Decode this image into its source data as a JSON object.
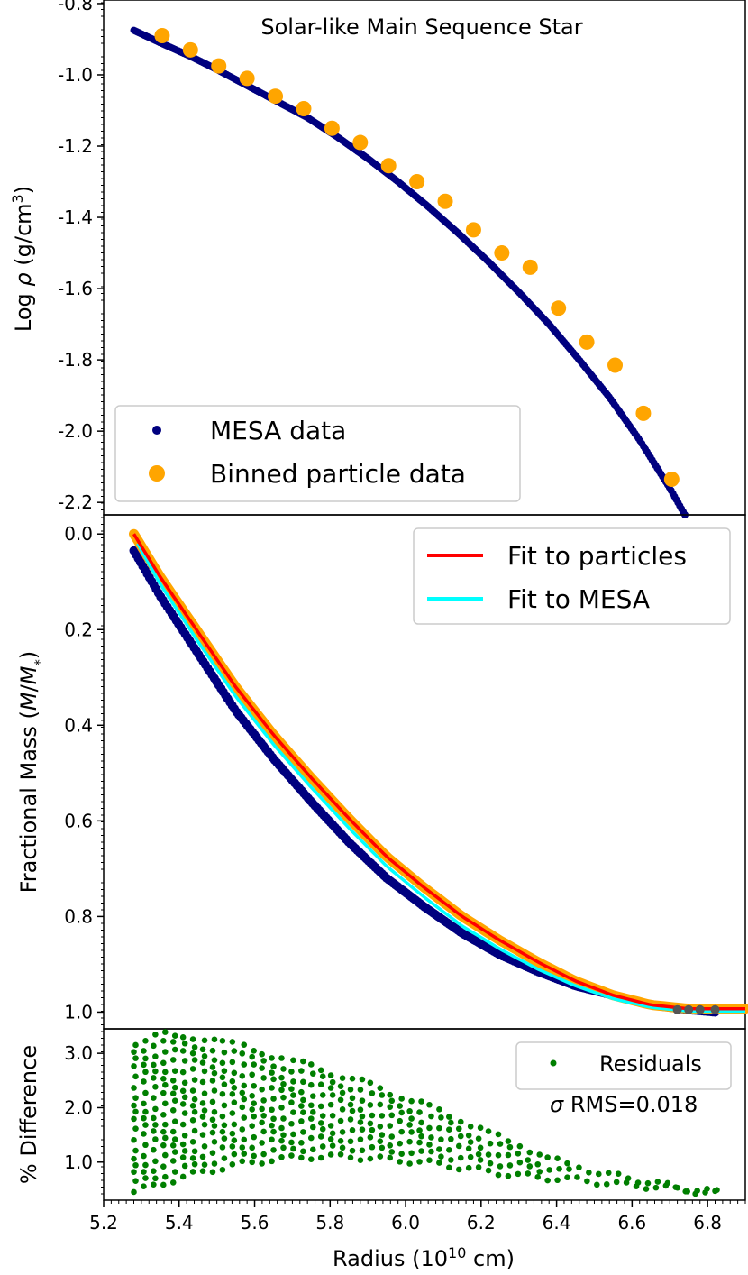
{
  "chart_data": [
    {
      "panel": "top",
      "type": "scatter",
      "title": "Solar-like Main Sequence Star",
      "ylabel_parts": [
        "Log ",
        "ρ",
        " (g/cm",
        "3",
        ")"
      ],
      "xlim": [
        5.2,
        6.9
      ],
      "ylim": [
        -2.235,
        -0.79
      ],
      "yticks": [
        -0.8,
        -1.0,
        -1.2,
        -1.4,
        -1.6,
        -1.8,
        -2.0,
        -2.2
      ],
      "ytick_labels": [
        "-0.8",
        "-1.0",
        "-1.2",
        "-1.4",
        "-1.6",
        "-1.8",
        "-2.0",
        "-2.2"
      ],
      "series": [
        {
          "name": "MESA data",
          "style": "curve-dots",
          "color": "#00007f",
          "x": [
            5.28,
            5.35,
            5.43,
            5.5,
            5.58,
            5.66,
            5.74,
            5.82,
            5.9,
            5.98,
            6.06,
            6.14,
            6.22,
            6.3,
            6.38,
            6.46,
            6.54,
            6.62,
            6.7,
            6.74
          ],
          "y": [
            -0.875,
            -0.91,
            -0.948,
            -0.985,
            -1.03,
            -1.075,
            -1.12,
            -1.175,
            -1.235,
            -1.3,
            -1.37,
            -1.445,
            -1.525,
            -1.61,
            -1.7,
            -1.8,
            -1.905,
            -2.025,
            -2.16,
            -2.235
          ]
        },
        {
          "name": "Binned particle data",
          "style": "points",
          "color": "#ffa500",
          "x": [
            5.355,
            5.43,
            5.505,
            5.58,
            5.655,
            5.73,
            5.805,
            5.88,
            5.955,
            6.03,
            6.105,
            6.18,
            6.255,
            6.33,
            6.405,
            6.48,
            6.555,
            6.63,
            6.705
          ],
          "y": [
            -0.89,
            -0.93,
            -0.975,
            -1.01,
            -1.06,
            -1.095,
            -1.15,
            -1.19,
            -1.255,
            -1.3,
            -1.355,
            -1.435,
            -1.5,
            -1.54,
            -1.655,
            -1.75,
            -1.815,
            -1.95,
            -2.135
          ]
        }
      ],
      "legend": {
        "placement": "lower-left",
        "entries": [
          "MESA data",
          "Binned particle data"
        ]
      }
    },
    {
      "panel": "middle",
      "type": "line",
      "ylabel_parts": [
        "Fractional Mass (",
        "M",
        "/",
        "M",
        "*",
        ")"
      ],
      "xlim": [
        5.2,
        6.9
      ],
      "ylim": [
        1.035,
        -0.04
      ],
      "yticks": [
        0.0,
        0.2,
        0.4,
        0.6,
        0.8,
        1.0
      ],
      "ytick_labels": [
        "0.0",
        "0.2",
        "0.4",
        "0.6",
        "0.8",
        "1.0"
      ],
      "series": [
        {
          "name": "MESA points",
          "style": "dots",
          "color": "#00007f",
          "x": [
            5.28,
            5.35,
            5.45,
            5.55,
            5.65,
            5.75,
            5.85,
            5.95,
            6.05,
            6.15,
            6.25,
            6.35,
            6.45,
            6.55,
            6.65,
            6.75,
            6.82
          ],
          "y": [
            0.035,
            0.13,
            0.25,
            0.37,
            0.47,
            0.56,
            0.645,
            0.72,
            0.78,
            0.835,
            0.88,
            0.915,
            0.945,
            0.965,
            0.985,
            0.995,
            1.0
          ]
        },
        {
          "name": "Particle points",
          "style": "thick-line",
          "color": "#ffa500",
          "x": [
            5.28,
            5.35,
            5.45,
            5.55,
            5.65,
            5.75,
            5.85,
            5.95,
            6.05,
            6.15,
            6.25,
            6.35,
            6.45,
            6.55,
            6.65,
            6.75,
            6.9
          ],
          "y": [
            0.0,
            0.09,
            0.205,
            0.32,
            0.42,
            0.51,
            0.595,
            0.675,
            0.74,
            0.8,
            0.85,
            0.895,
            0.935,
            0.965,
            0.985,
            0.993,
            0.993
          ]
        },
        {
          "name": "Fit to particles",
          "style": "line",
          "color": "#ff0000",
          "x": [
            5.28,
            5.35,
            5.45,
            5.55,
            5.65,
            5.75,
            5.85,
            5.95,
            6.05,
            6.15,
            6.25,
            6.35,
            6.45,
            6.55,
            6.65,
            6.75,
            6.9
          ],
          "y": [
            0.0,
            0.09,
            0.205,
            0.32,
            0.42,
            0.51,
            0.595,
            0.675,
            0.74,
            0.8,
            0.85,
            0.895,
            0.935,
            0.965,
            0.985,
            0.993,
            0.993
          ]
        },
        {
          "name": "Fit to MESA",
          "style": "line",
          "color": "#00ffff",
          "x": [
            5.29,
            5.35,
            5.45,
            5.55,
            5.65,
            5.75,
            5.85,
            5.95,
            6.05,
            6.15,
            6.25,
            6.35,
            6.45,
            6.55,
            6.65,
            6.75,
            6.9
          ],
          "y": [
            0.02,
            0.105,
            0.225,
            0.34,
            0.44,
            0.53,
            0.615,
            0.695,
            0.76,
            0.82,
            0.868,
            0.91,
            0.945,
            0.972,
            0.99,
            0.998,
            0.998
          ]
        }
      ],
      "legend": {
        "placement": "top-right",
        "entries": [
          "Fit to particles",
          "Fit to MESA"
        ]
      }
    },
    {
      "panel": "bottom",
      "type": "scatter",
      "ylabel": "% Difference",
      "xlabel_parts": [
        "Radius (10",
        "10",
        " cm)"
      ],
      "xlim": [
        5.2,
        6.9
      ],
      "ylim": [
        0.3,
        3.45
      ],
      "yticks": [
        1.0,
        2.0,
        3.0
      ],
      "ytick_labels": [
        "1.0",
        "2.0",
        "3.0"
      ],
      "xticks": [
        5.2,
        5.4,
        5.6,
        5.8,
        6.0,
        6.2,
        6.4,
        6.6,
        6.8
      ],
      "xtick_labels": [
        "5.2",
        "5.4",
        "5.6",
        "5.8",
        "6.0",
        "6.2",
        "6.4",
        "6.6",
        "6.8"
      ],
      "series": [
        {
          "name": "Residuals",
          "color": "#007f00",
          "upper_envelope": {
            "x": [
              5.28,
              5.35,
              5.45,
              5.55,
              5.65,
              5.75,
              5.85,
              5.95,
              6.05,
              6.15,
              6.25,
              6.35,
              6.45,
              6.55,
              6.65,
              6.75,
              6.82
            ],
            "y": [
              3.2,
              3.35,
              3.3,
              3.15,
              2.95,
              2.75,
              2.55,
              2.3,
              2.05,
              1.75,
              1.45,
              1.15,
              0.9,
              0.75,
              0.62,
              0.5,
              0.45
            ]
          },
          "lower_envelope": {
            "x": [
              5.28,
              5.35,
              5.45,
              5.55,
              5.65,
              5.75,
              5.85,
              5.95,
              6.05,
              6.15,
              6.25,
              6.35,
              6.45,
              6.55,
              6.65,
              6.75,
              6.82
            ],
            "y": [
              0.45,
              0.6,
              0.8,
              0.95,
              1.05,
              1.1,
              1.1,
              1.05,
              1.0,
              0.9,
              0.8,
              0.72,
              0.68,
              0.6,
              0.55,
              0.48,
              0.42
            ]
          }
        }
      ],
      "legend": {
        "placement": "top-right",
        "entries": [
          "Residuals"
        ]
      },
      "annotation_parts": [
        "σ",
        " RMS=0.018"
      ]
    }
  ]
}
